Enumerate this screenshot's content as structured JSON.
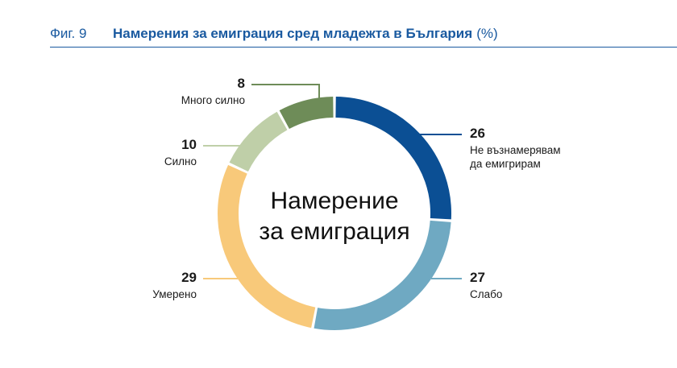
{
  "header": {
    "fig_label": "Фиг. 9",
    "title": "Намерения за емиграция сред младежта в България",
    "unit": "(%)"
  },
  "chart_data": {
    "type": "pie",
    "donut": true,
    "center_label": [
      "Намерение",
      "за емиграция"
    ],
    "slices": [
      {
        "label": [
          "Не възнамерявам",
          "да емигрирам"
        ],
        "value": 26,
        "color": "#0b4f94"
      },
      {
        "label": [
          "Слабо"
        ],
        "value": 27,
        "color": "#6fa9c2"
      },
      {
        "label": [
          "Умерено"
        ],
        "value": 29,
        "color": "#f8c97a"
      },
      {
        "label": [
          "Силно"
        ],
        "value": 10,
        "color": "#bfcfa8"
      },
      {
        "label": [
          "Много силно"
        ],
        "value": 8,
        "color": "#6e8c58"
      }
    ]
  }
}
